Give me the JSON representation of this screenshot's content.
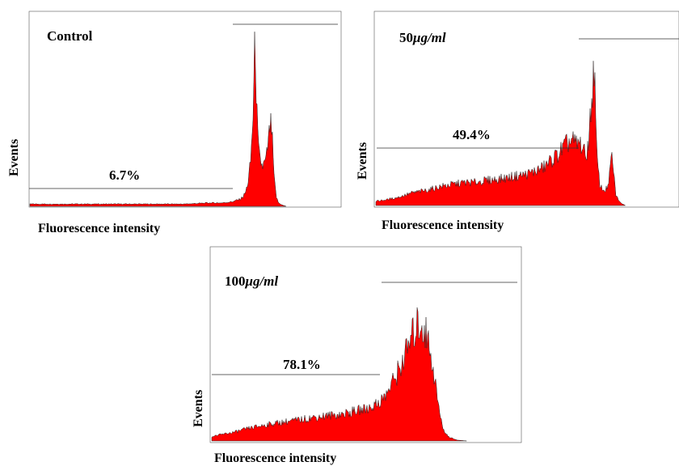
{
  "chart_data": [
    {
      "type": "area",
      "title": "Control",
      "ylabel": "Events",
      "xlabel": "Fluorescence intensity",
      "x_scale": "log",
      "xlim": [
        1,
        10000
      ],
      "annotation": "6.7%",
      "series_color": "#ff0000",
      "series": [
        {
          "x": [
            1,
            2,
            5,
            10,
            20,
            50,
            100,
            200,
            300,
            400,
            500,
            550,
            600,
            650,
            700,
            750,
            780,
            800,
            830,
            870,
            920,
            1000,
            1100,
            1200,
            1250,
            1300,
            1350,
            1400,
            1500,
            1600,
            1800,
            2000
          ],
          "y": [
            2,
            2,
            2,
            2,
            2,
            2,
            2,
            3,
            3,
            4,
            6,
            8,
            12,
            22,
            40,
            80,
            120,
            155,
            95,
            55,
            40,
            35,
            40,
            60,
            72,
            68,
            50,
            25,
            8,
            3,
            1,
            0
          ]
        }
      ]
    },
    {
      "type": "area",
      "title": "50",
      "title_unit": "μg/ml",
      "ylabel": "Events",
      "xlabel": "Fluorescence intensity",
      "x_scale": "log",
      "xlim": [
        1,
        10000
      ],
      "annotation": "49.4%",
      "series_color": "#ff0000",
      "series": [
        {
          "x": [
            1,
            1.5,
            2,
            3,
            5,
            7,
            10,
            15,
            20,
            30,
            50,
            70,
            100,
            130,
            170,
            200,
            250,
            300,
            350,
            400,
            450,
            500,
            550,
            600,
            650,
            700,
            750,
            780,
            800,
            830,
            870,
            920,
            1000,
            1100,
            1200,
            1300,
            1350,
            1400,
            1500,
            1700,
            2000
          ],
          "y": [
            4,
            6,
            8,
            12,
            15,
            18,
            20,
            22,
            22,
            24,
            26,
            28,
            30,
            33,
            37,
            42,
            48,
            55,
            60,
            62,
            58,
            60,
            55,
            45,
            62,
            90,
            120,
            140,
            95,
            55,
            35,
            20,
            15,
            15,
            20,
            45,
            48,
            30,
            10,
            3,
            0
          ]
        }
      ]
    },
    {
      "type": "area",
      "title": "100",
      "title_unit": "μg/ml",
      "ylabel": "Events",
      "xlabel": "Fluorescence intensity",
      "x_scale": "log",
      "xlim": [
        1,
        10000
      ],
      "annotation": "78.1%",
      "series_color": "#ff0000",
      "series": [
        {
          "x": [
            1,
            1.5,
            2,
            3,
            5,
            7,
            10,
            15,
            20,
            30,
            50,
            70,
            100,
            130,
            170,
            200,
            250,
            300,
            350,
            400,
            450,
            500,
            600,
            700,
            800,
            900,
            1000,
            1200,
            1500,
            2000
          ],
          "y": [
            5,
            8,
            10,
            14,
            18,
            20,
            22,
            24,
            26,
            28,
            30,
            33,
            36,
            40,
            48,
            58,
            75,
            90,
            105,
            118,
            128,
            132,
            120,
            95,
            60,
            30,
            12,
            4,
            1,
            0
          ]
        }
      ]
    }
  ]
}
